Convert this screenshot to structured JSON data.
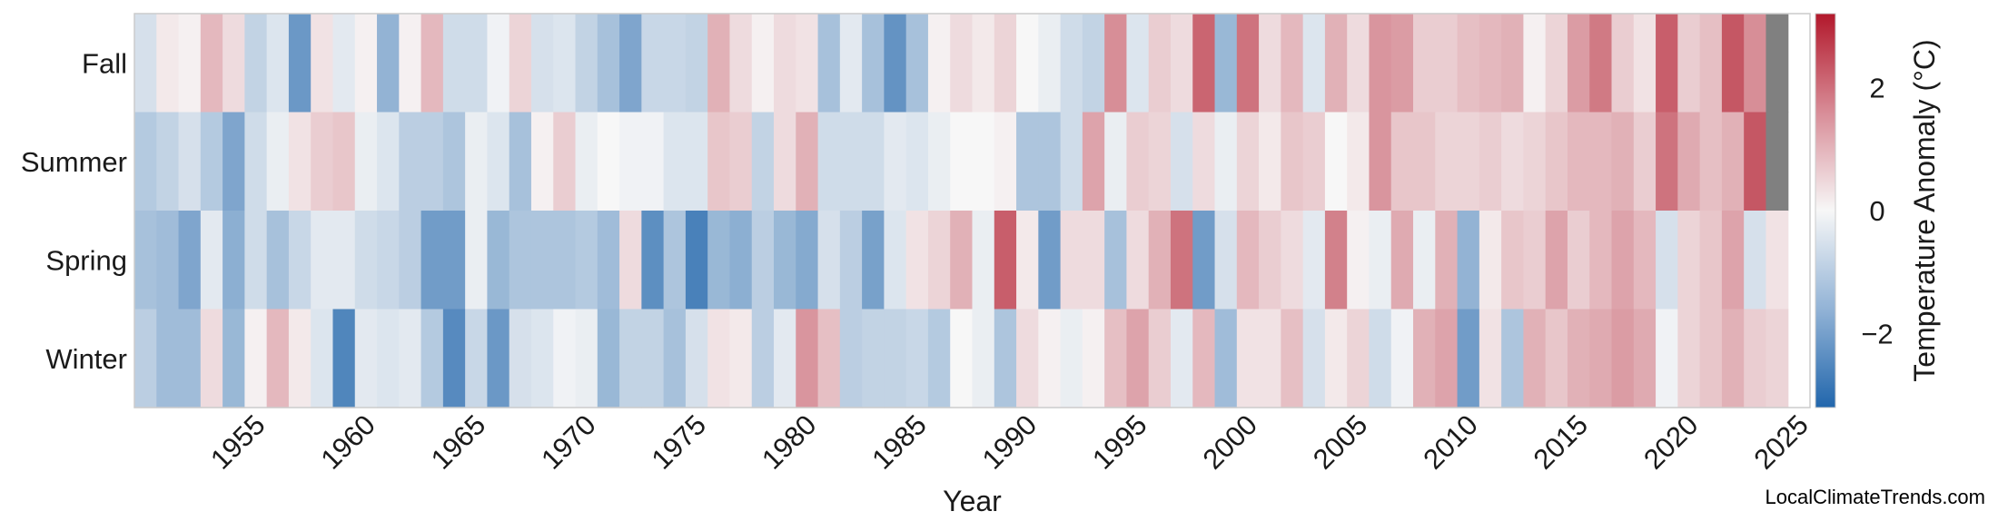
{
  "chart_data": {
    "type": "heatmap",
    "xlabel": "Year",
    "colorbar_label": "Temperature Anomaly (°C)",
    "colorbar_range": [
      -3.2,
      3.2
    ],
    "colorbar_ticks": [
      -2,
      0,
      2
    ],
    "colorbar_tick_labels": [
      "−2",
      "0",
      "2"
    ],
    "colormap": {
      "low": "#2166ac",
      "mid": "#f7f7f7",
      "high": "#b2182b"
    },
    "missing_color": "#808080",
    "seasons": [
      "Fall",
      "Summer",
      "Spring",
      "Winter"
    ],
    "year_start": 1950,
    "year_end": 2025,
    "x_ticks": [
      1955,
      1960,
      1965,
      1970,
      1975,
      1980,
      1985,
      1990,
      1995,
      2000,
      2005,
      2010,
      2015,
      2020,
      2025
    ],
    "rows": [
      [
        -0.5,
        0.2,
        0.1,
        0.9,
        0.4,
        -0.8,
        -0.4,
        -2.1,
        0.3,
        -0.3,
        0.1,
        -1.5,
        0.1,
        0.9,
        -0.6,
        -0.6,
        -0.1,
        0.5,
        -0.5,
        -0.4,
        -0.8,
        -1.2,
        -1.8,
        -0.7,
        -0.7,
        -0.8,
        1.0,
        0.4,
        0.1,
        0.4,
        0.3,
        -1.2,
        -0.3,
        -1.2,
        -2.2,
        -1.2,
        0.1,
        0.4,
        0.2,
        0.5,
        0.0,
        -0.2,
        -0.6,
        -0.8,
        1.5,
        -0.4,
        0.6,
        0.4,
        2.1,
        -1.4,
        1.9,
        0.4,
        0.9,
        -0.4,
        1.0,
        0.4,
        1.4,
        1.3,
        0.6,
        0.6,
        0.8,
        0.9,
        1.0,
        0.1,
        0.5,
        1.3,
        1.8,
        0.6,
        0.3,
        2.2,
        0.6,
        0.8,
        2.3,
        1.5,
        null
      ],
      [
        -1.0,
        -0.8,
        -0.5,
        -1.0,
        -1.8,
        -0.6,
        -0.2,
        0.3,
        0.6,
        0.7,
        -0.2,
        -0.4,
        -0.9,
        -0.9,
        -1.1,
        -0.2,
        -0.4,
        -1.2,
        0.1,
        0.6,
        -0.2,
        0.0,
        -0.1,
        -0.1,
        -0.4,
        -0.4,
        0.7,
        0.6,
        -0.8,
        0.4,
        1.0,
        -0.6,
        -0.6,
        -0.6,
        -0.3,
        -0.4,
        -0.2,
        0.0,
        0.0,
        0.1,
        -1.1,
        -1.1,
        -0.6,
        1.2,
        -0.2,
        0.6,
        0.5,
        -0.5,
        0.4,
        -0.2,
        0.5,
        0.2,
        0.7,
        0.6,
        0.0,
        0.2,
        1.4,
        0.7,
        0.7,
        0.5,
        0.5,
        0.6,
        0.4,
        0.5,
        0.7,
        0.9,
        0.9,
        1.0,
        0.6,
        1.9,
        1.1,
        0.8,
        1.0,
        2.3,
        null
      ],
      [
        -1.2,
        -1.3,
        -1.8,
        -0.3,
        -1.6,
        -0.6,
        -1.2,
        -0.7,
        -0.3,
        -0.3,
        -0.6,
        -0.7,
        -0.9,
        -2.0,
        -2.0,
        -0.2,
        -1.4,
        -1.1,
        -1.1,
        -1.1,
        -1.0,
        -1.3,
        0.4,
        -2.3,
        -1.1,
        -2.6,
        -1.4,
        -1.6,
        -0.9,
        -1.4,
        -1.7,
        -0.5,
        -0.9,
        -1.9,
        -0.4,
        0.3,
        0.5,
        1.0,
        -0.2,
        2.2,
        0.2,
        -2.0,
        0.4,
        0.4,
        -1.2,
        0.4,
        1.0,
        1.9,
        -2.0,
        -0.5,
        0.9,
        0.6,
        0.4,
        -0.3,
        1.7,
        0.1,
        -0.2,
        1.1,
        -0.2,
        1.0,
        -1.5,
        0.2,
        0.7,
        0.6,
        1.2,
        0.6,
        0.9,
        1.2,
        0.9,
        -0.5,
        0.5,
        0.7,
        1.2,
        -0.5,
        0.3
      ],
      [
        -0.9,
        -1.3,
        -1.3,
        0.4,
        -1.4,
        0.1,
        0.9,
        0.2,
        -0.4,
        -2.5,
        -0.3,
        -0.4,
        -0.3,
        -1.0,
        -2.4,
        -0.7,
        -2.1,
        -0.5,
        -0.4,
        -0.1,
        -0.2,
        -1.4,
        -0.8,
        -0.8,
        -1.2,
        -0.5,
        0.3,
        0.2,
        -0.9,
        -0.3,
        1.4,
        0.8,
        -0.9,
        -0.8,
        -0.8,
        -0.7,
        -1.0,
        0.0,
        -0.2,
        -1.1,
        0.4,
        0.1,
        -0.2,
        0.1,
        0.8,
        1.2,
        0.6,
        -0.3,
        0.9,
        -1.3,
        0.3,
        0.3,
        0.8,
        -0.5,
        0.2,
        0.5,
        -0.6,
        -0.1,
        1.0,
        1.2,
        -2.0,
        0.3,
        -1.1,
        1.0,
        0.7,
        1.0,
        1.1,
        1.3,
        1.1,
        -0.1,
        0.5,
        0.7,
        1.0,
        0.6,
        0.5
      ]
    ]
  },
  "credit": "LocalClimateTrends.com"
}
